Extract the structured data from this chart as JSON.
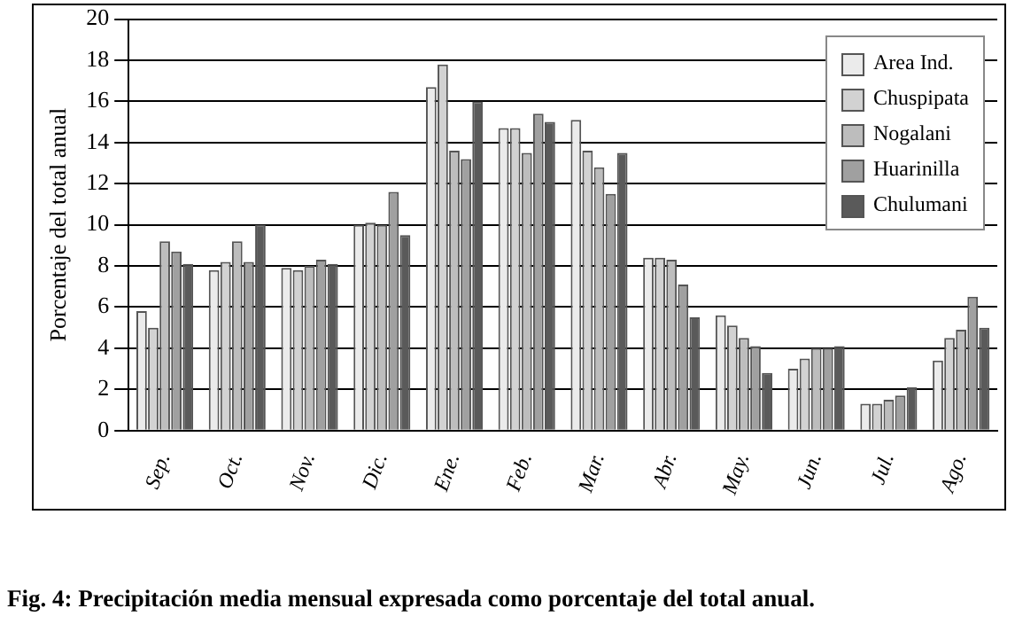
{
  "chart_data": {
    "type": "bar",
    "title": "Fig. 4: Precipitación media mensual expresada como porcentaje del total anual.",
    "ylabel": "Porcentaje del total anual",
    "categories": [
      "Sep.",
      "Oct.",
      "Nov.",
      "Dic.",
      "Ene.",
      "Feb.",
      "Mar.",
      "Abr.",
      "May.",
      "Jun.",
      "Jul.",
      "Ago."
    ],
    "series": [
      {
        "name": "Area Ind.",
        "color": "#ebebeb",
        "values": [
          5.8,
          7.8,
          7.9,
          10.0,
          16.7,
          14.7,
          15.1,
          8.4,
          5.6,
          3.0,
          1.3,
          3.4
        ]
      },
      {
        "name": "Chuspipata",
        "color": "#d2d2d2",
        "values": [
          5.0,
          8.2,
          7.8,
          10.1,
          17.8,
          14.7,
          13.6,
          8.4,
          5.1,
          3.5,
          1.3,
          4.5
        ]
      },
      {
        "name": "Nogalani",
        "color": "#bdbdbd",
        "values": [
          9.2,
          9.2,
          8.0,
          10.0,
          13.6,
          13.5,
          12.8,
          8.3,
          4.5,
          4.0,
          1.5,
          4.9
        ]
      },
      {
        "name": "Huarinilla",
        "color": "#a0a0a0",
        "values": [
          8.7,
          8.2,
          8.3,
          11.6,
          13.2,
          15.4,
          11.5,
          7.1,
          4.1,
          4.0,
          1.7,
          6.5
        ]
      },
      {
        "name": "Chulumani",
        "color": "#5a5a5a",
        "values": [
          8.1,
          10.0,
          8.1,
          9.5,
          16.0,
          15.0,
          13.5,
          5.5,
          2.8,
          4.1,
          2.1,
          5.0
        ]
      }
    ],
    "ylim": [
      0,
      20
    ],
    "yticks": [
      0,
      2,
      4,
      6,
      8,
      10,
      12,
      14,
      16,
      18,
      20
    ],
    "grid": "y",
    "legend": "top right"
  }
}
